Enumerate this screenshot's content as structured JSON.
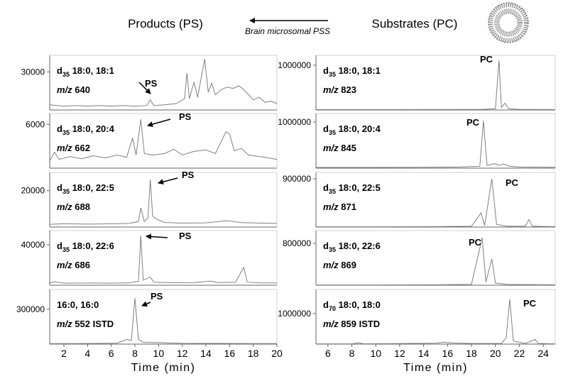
{
  "header": {
    "left_title": "Products (PS)",
    "right_title": "Substrates (PC)",
    "arrow_label": "Brain microsomal PSS"
  },
  "chart_data": [
    {
      "type": "line",
      "compound_prefix": "d",
      "compound_subscript": "35",
      "compound": " 18:0, 18:1",
      "mz_label": "m/z",
      "mz": " 640",
      "peak_label": "PS",
      "color": "#808080",
      "x": [
        0.8,
        2,
        3,
        4,
        5,
        6,
        7,
        8,
        9,
        9.3,
        9.6,
        10.5,
        11.5,
        12.2,
        12.4,
        12.6,
        13,
        13.3,
        13.9,
        14.2,
        14.5,
        14.8,
        15.3,
        15.8,
        16.3,
        16.8,
        17.2,
        17.6,
        18,
        18.5,
        19,
        19.5,
        20
      ],
      "values": [
        4000,
        3000,
        3500,
        3000,
        3500,
        3000,
        3500,
        3000,
        3500,
        8000,
        3500,
        4000,
        5000,
        9000,
        29000,
        9000,
        22000,
        10000,
        40000,
        14000,
        21000,
        12000,
        16000,
        18000,
        17000,
        19000,
        16000,
        12000,
        8000,
        10000,
        6000,
        7000,
        5000
      ],
      "xlim": [
        0.8,
        20
      ],
      "ylim": [
        0,
        43000
      ],
      "yticks": [
        30000
      ]
    },
    {
      "type": "line",
      "compound_prefix": "d",
      "compound_subscript": "35",
      "compound": " 18:0, 20:4",
      "mz_label": "m/z",
      "mz": " 662",
      "peak_label": "PS",
      "color": "#808080",
      "x": [
        0.8,
        1.2,
        1.6,
        2.5,
        3.5,
        4.5,
        5.5,
        6.5,
        7.3,
        7.8,
        8.1,
        8.5,
        8.8,
        9.5,
        10.5,
        11.3,
        12,
        13,
        14,
        14.8,
        15.7,
        16,
        16.4,
        17,
        17.6,
        18.5,
        19.3,
        20
      ],
      "values": [
        1000,
        2200,
        1200,
        1600,
        1300,
        1700,
        1400,
        1800,
        1500,
        4100,
        1800,
        6700,
        2000,
        1800,
        2000,
        2600,
        1800,
        2300,
        2500,
        2000,
        5000,
        4700,
        2400,
        2700,
        1800,
        1600,
        1400,
        1200
      ],
      "xlim": [
        0.8,
        20
      ],
      "ylim": [
        0,
        7500
      ],
      "yticks": [
        6000
      ]
    },
    {
      "type": "line",
      "compound_prefix": "d",
      "compound_subscript": "35",
      "compound": " 18:0, 22:5",
      "mz_label": "m/z",
      "mz": " 688",
      "peak_label": "PS",
      "color": "#808080",
      "x": [
        0.8,
        2,
        4,
        6,
        7.5,
        8.3,
        8.5,
        8.8,
        9.1,
        9.3,
        9.5,
        9.8,
        10.5,
        12,
        14,
        15.8,
        17,
        18.5,
        20
      ],
      "values": [
        1500,
        1800,
        1600,
        1800,
        2000,
        3000,
        10500,
        3000,
        5000,
        26000,
        6000,
        4500,
        2500,
        2200,
        2300,
        3500,
        2400,
        2200,
        2000
      ],
      "xlim": [
        0.8,
        20
      ],
      "ylim": [
        0,
        30000
      ],
      "yticks": [
        20000
      ]
    },
    {
      "type": "line",
      "compound_prefix": "d",
      "compound_subscript": "35",
      "compound": " 18:0, 22:6",
      "mz_label": "m/z",
      "mz": " 686",
      "peak_label": "PS",
      "color": "#808080",
      "x": [
        0.8,
        1.2,
        2,
        4,
        6,
        7.5,
        8.3,
        8.5,
        8.7,
        9.3,
        9.6,
        11,
        13,
        14.4,
        15,
        16.5,
        17.2,
        17.5,
        18.5,
        20
      ],
      "values": [
        2000,
        3500,
        2000,
        2200,
        2000,
        2300,
        4000,
        49000,
        5000,
        8000,
        3000,
        2500,
        2600,
        4000,
        2600,
        3000,
        17500,
        3000,
        2400,
        2200
      ],
      "xlim": [
        0.8,
        20
      ],
      "ylim": [
        0,
        54000
      ],
      "yticks": [
        40000
      ]
    },
    {
      "type": "line",
      "compound": "16:0, 16:0",
      "mz_label": "m/z",
      "mz": " 552 ISTD",
      "peak_label": "PS",
      "color": "#808080",
      "x": [
        0.8,
        3,
        5,
        6.5,
        7.3,
        7.7,
        8,
        8.3,
        8.7,
        10.3,
        12,
        15,
        18,
        20
      ],
      "values": [
        5000,
        5000,
        6000,
        8000,
        40000,
        30000,
        397000,
        40000,
        15000,
        12000,
        7000,
        6000,
        5000,
        5000
      ],
      "xlim": [
        0.8,
        20
      ],
      "ylim": [
        0,
        470000
      ],
      "yticks": [
        300000
      ],
      "xticks": [
        2,
        4,
        6,
        8,
        10,
        12,
        14,
        16,
        18,
        20
      ],
      "xlabel": "Time (min)"
    },
    {
      "type": "line",
      "compound_prefix": "d",
      "compound_subscript": "35",
      "compound": " 18:0, 18:1",
      "mz_label": "m/z",
      "mz": " 823",
      "peak_label": "PC",
      "color": "#808080",
      "x": [
        5,
        8,
        12,
        16,
        19,
        20,
        20.3,
        20.5,
        20.8,
        21.1,
        22,
        25
      ],
      "values": [
        10000,
        10000,
        10000,
        12000,
        15000,
        30000,
        1110000,
        60000,
        150000,
        30000,
        15000,
        10000
      ],
      "xlim": [
        5,
        25
      ],
      "ylim": [
        0,
        1220000
      ],
      "yticks": [
        1000000
      ]
    },
    {
      "type": "line",
      "compound_prefix": "d",
      "compound_subscript": "35",
      "compound": " 18:0, 20:4",
      "mz_label": "m/z",
      "mz": " 845",
      "peak_label": "PC",
      "color": "#808080",
      "x": [
        5,
        10,
        14,
        17,
        18.7,
        19,
        19.3,
        20,
        20.3,
        20.7,
        21.2,
        22,
        25
      ],
      "values": [
        15000,
        15000,
        20000,
        25000,
        40000,
        1030000,
        60000,
        100000,
        60000,
        90000,
        40000,
        25000,
        20000
      ],
      "xlim": [
        5,
        25
      ],
      "ylim": [
        0,
        1185000
      ],
      "yticks": [
        1000000
      ]
    },
    {
      "type": "line",
      "compound_prefix": "d",
      "compound_subscript": "35",
      "compound": " 18:0, 22:5",
      "mz_label": "m/z",
      "mz": " 871",
      "peak_label": "PC",
      "color": "#808080",
      "x": [
        5,
        10,
        15,
        18,
        18.8,
        19.1,
        19.7,
        20.1,
        21,
        22.5,
        22.8,
        23.1,
        25
      ],
      "values": [
        5000,
        5000,
        8000,
        15000,
        265000,
        30000,
        900000,
        50000,
        15000,
        15000,
        140000,
        15000,
        8000
      ],
      "xlim": [
        5,
        25
      ],
      "ylim": [
        0,
        1019000
      ],
      "yticks": [
        900000
      ]
    },
    {
      "type": "line",
      "compound_prefix": "d",
      "compound_subscript": "35",
      "compound": " 18:0, 22:6",
      "mz_label": "m/z",
      "mz": " 869",
      "peak_label": "PC",
      "color": "#808080",
      "x": [
        5,
        10,
        15,
        18,
        18.9,
        19.2,
        19.7,
        20,
        21,
        25
      ],
      "values": [
        5000,
        5000,
        8000,
        15000,
        908000,
        60000,
        500000,
        40000,
        15000,
        8000
      ],
      "xlim": [
        5,
        25
      ],
      "ylim": [
        0,
        1044000
      ],
      "yticks": [
        800000
      ]
    },
    {
      "type": "line",
      "compound_prefix": "d",
      "compound_subscript": "70",
      "compound": " 18:0, 18:0",
      "mz_label": "m/z",
      "mz": " 859 ISTD",
      "peak_label": "PC",
      "color": "#808080",
      "x": [
        5,
        8,
        8.6,
        9,
        15,
        15.7,
        16.5,
        18,
        20.5,
        20.9,
        21.2,
        21.5,
        22.5,
        23.3,
        23.6,
        25
      ],
      "values": [
        10000,
        10000,
        40000,
        10000,
        30000,
        60000,
        35000,
        20000,
        20000,
        200000,
        1465000,
        100000,
        20000,
        150000,
        20000,
        10000
      ],
      "xlim": [
        5,
        25
      ],
      "ylim": [
        0,
        1790000
      ],
      "yticks": [
        1000000
      ],
      "xticks": [
        6,
        8,
        10,
        12,
        14,
        16,
        18,
        20,
        22,
        24
      ],
      "xlabel": "Time (min)"
    }
  ]
}
